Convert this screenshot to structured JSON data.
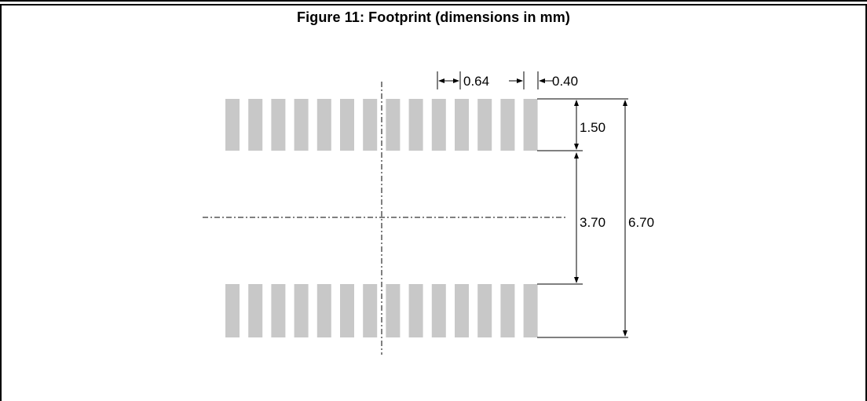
{
  "figure": {
    "title": "Figure 11: Footprint (dimensions in mm)"
  },
  "diagram": {
    "pads_per_row": 14,
    "pad_color": "#c8c8c8",
    "dimensions": {
      "pitch": "0.64",
      "pad_width": "0.40",
      "pad_length": "1.50",
      "gap": "3.70",
      "overall": "6.70"
    }
  }
}
